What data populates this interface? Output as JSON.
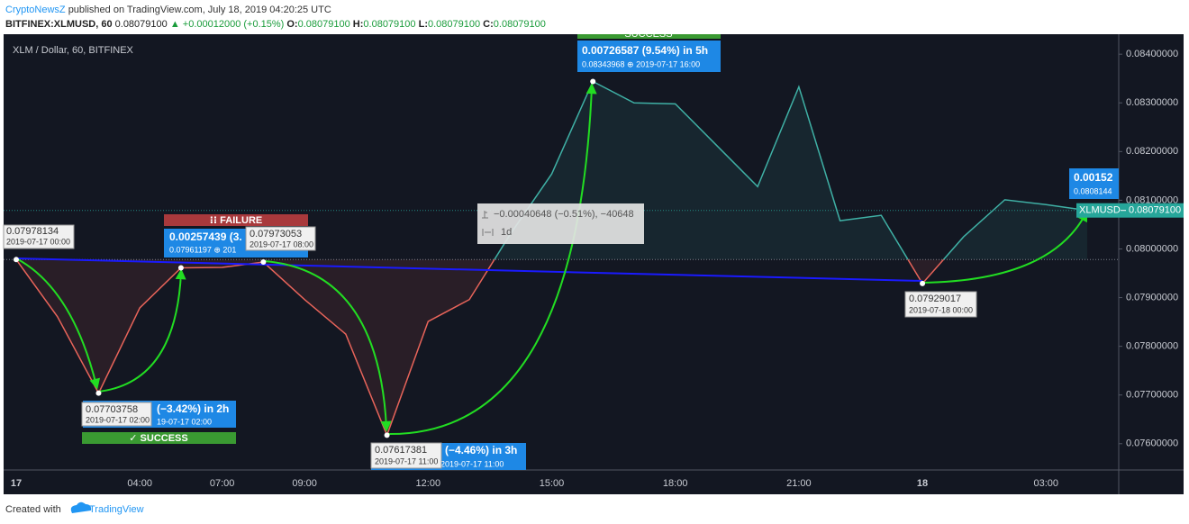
{
  "header": {
    "author": "CryptoNewsZ",
    "published": "published on TradingView.com, July 18, 2019 04:20:25 UTC",
    "symbol": "BITFINEX:XLMUSD, 60",
    "price": "0.08079100",
    "change": "▲ +0.00012000 (+0.15%)",
    "o_label": "O:",
    "o": "0.08079100",
    "h_label": "H:",
    "h": "0.08079100",
    "l_label": "L:",
    "l": "0.08079100",
    "c_label": "C:",
    "c": "0.08079100"
  },
  "chart_data": {
    "type": "line",
    "title": "XLM / Dollar, 60, BITFINEX",
    "categories": [
      "17",
      null,
      null,
      "04:00",
      null,
      "07:00",
      null,
      "09:00",
      null,
      null,
      "12:00",
      null,
      null,
      "15:00",
      null,
      null,
      "18:00",
      null,
      null,
      "21:00",
      null,
      null,
      "18",
      null,
      null,
      "03:00",
      null
    ],
    "series": [
      {
        "name": "XLMUSD",
        "color_above": "#3fb0a5",
        "color_below": "#e8645a",
        "values": [
          0.07978134,
          0.07861,
          0.07703758,
          0.07879,
          0.07961197,
          0.07962,
          0.07973053,
          0.07896,
          0.07825,
          0.07617381,
          0.07851,
          0.07896,
          0.08031,
          0.08154,
          0.08343968,
          0.083,
          0.08298,
          0.08213,
          0.08128,
          0.08333,
          0.08058,
          0.08069,
          0.07929017,
          0.08025,
          0.08101,
          0.08091,
          0.080791
        ]
      }
    ],
    "baseline": 0.07978134,
    "last_price": {
      "value": 0.080791,
      "name": "XLMUSD",
      "label": "0.08079100",
      "color": "#26a69a"
    },
    "ylim": [
      0.07546,
      0.08441
    ],
    "yticks": [
      {
        "value": 0.084,
        "label": "0.08400000"
      },
      {
        "value": 0.083,
        "label": "0.08300000"
      },
      {
        "value": 0.082,
        "label": "0.08200000"
      },
      {
        "value": 0.081,
        "label": "0.08100000"
      },
      {
        "value": 0.08,
        "label": "0.08000000"
      },
      {
        "value": 0.079,
        "label": "0.07900000"
      },
      {
        "value": 0.078,
        "label": "0.07800000"
      },
      {
        "value": 0.077,
        "label": "0.07700000"
      },
      {
        "value": 0.076,
        "label": "0.07600000"
      }
    ]
  },
  "annotations": {
    "start": {
      "price": "0.07978134",
      "date": "2019-07-17 00:00"
    },
    "low1": {
      "price": "0.07703758",
      "date": "2019-07-17 02:00",
      "change": "(−3.42%) in 2h",
      "date2": "19-07-17  02:00",
      "status": "✓ SUCCESS"
    },
    "rise1": {
      "change": "0.00257439 (3.",
      "detail": "0.07961197 ⊕ 201",
      "status": "⁝⁝ FAILURE"
    },
    "peak1": {
      "price": "0.07973053",
      "date": "2019-07-17 08:00"
    },
    "low2": {
      "price": "0.07617381",
      "date": "2019-07-17 11:00",
      "change": "(−4.46%) in 3h",
      "date2": "2019-07-17  11:00"
    },
    "measure": {
      "change": "−0.00040648 (−0.51%), −40648",
      "range": "1d"
    },
    "high": {
      "change": "0.00726587 (9.54%) in 5h",
      "detail": "0.08343968 ⊕ 2019-07-17  16:00",
      "status": "SUCCESS"
    },
    "low3": {
      "price": "0.07929017",
      "date": "2019-07-18 00:00"
    },
    "end": {
      "change": "0.00152",
      "detail": "0.0808144"
    }
  },
  "footer": {
    "created": "Created with",
    "brand": "TradingView"
  }
}
